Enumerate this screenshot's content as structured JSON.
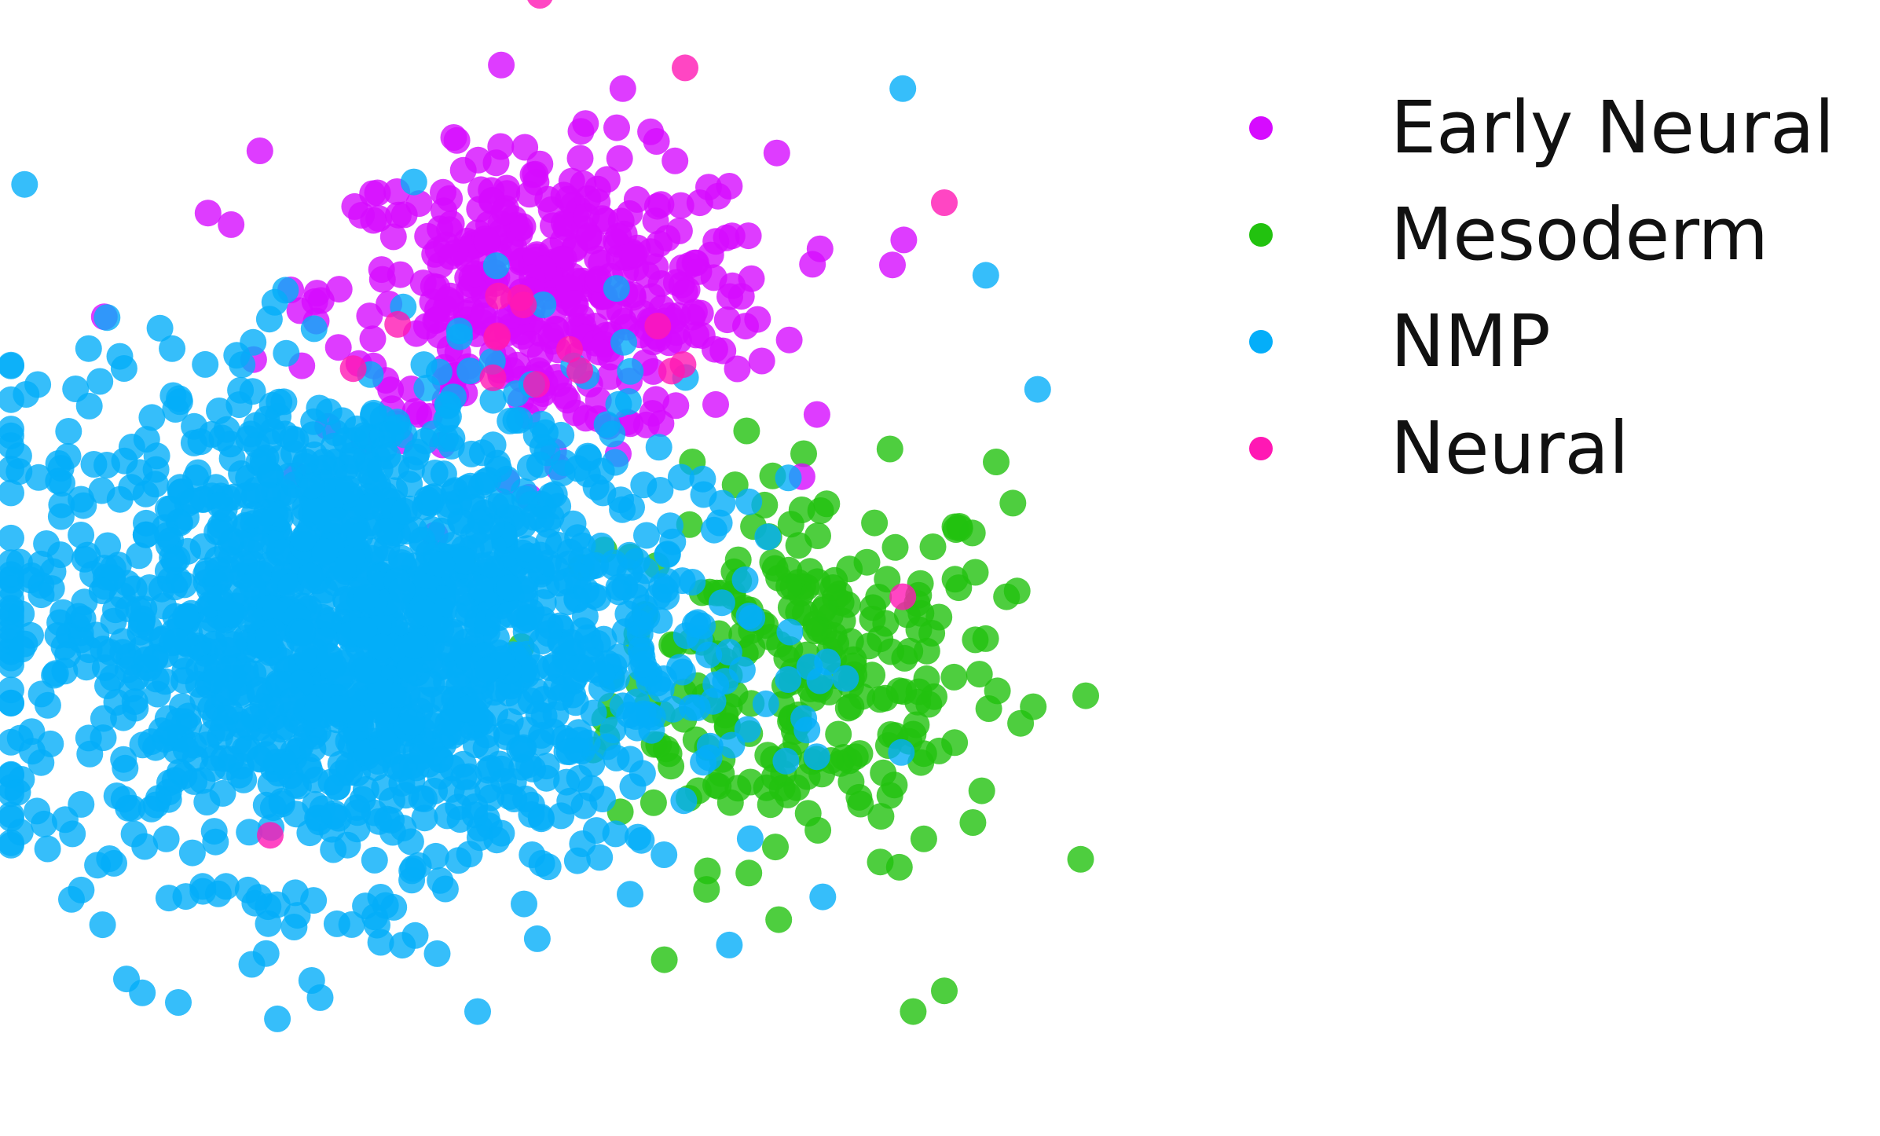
{
  "chart_data": {
    "type": "scatter",
    "title": "",
    "xlabel": "",
    "ylabel": "",
    "axes_visible": false,
    "grid": false,
    "legend_placement": "right",
    "xlim": [
      -5,
      5
    ],
    "ylim": [
      -5,
      5
    ],
    "series": [
      {
        "name": "Early Neural",
        "color": "#d60bff",
        "n_points": 420,
        "center": [
          -0.3,
          2.6
        ],
        "spread": [
          1.35,
          0.85
        ],
        "outliers": [
          [
            -3.6,
            3.4
          ],
          [
            -4.6,
            2.4
          ],
          [
            -1.2,
            4.1
          ],
          [
            3.0,
            2.9
          ],
          [
            0.4,
            4.6
          ],
          [
            -3.1,
            4.0
          ]
        ]
      },
      {
        "name": "Mesoderm",
        "color": "#22c20f",
        "n_points": 260,
        "center": [
          2.2,
          -1.0
        ],
        "spread": [
          1.2,
          1.15
        ],
        "outliers": [
          [
            3.2,
            -4.3
          ],
          [
            3.5,
            -4.1
          ],
          [
            4.1,
            -0.3
          ],
          [
            4.0,
            1.0
          ],
          [
            0.8,
            -3.8
          ]
        ]
      },
      {
        "name": "NMP",
        "color": "#04aef9",
        "n_points": 1700,
        "center": [
          -2.2,
          -0.6
        ],
        "spread": [
          2.0,
          1.5
        ],
        "outliers": [
          [
            3.1,
            4.6
          ],
          [
            3.9,
            2.8
          ],
          [
            4.4,
            1.7
          ],
          [
            -1.0,
            -4.3
          ],
          [
            -2.6,
            -4.0
          ],
          [
            -5.3,
            -1.6
          ]
        ]
      },
      {
        "name": "Neural",
        "color": "#ff18b4",
        "n_points": 12,
        "center": [
          -0.5,
          2.5
        ],
        "spread": [
          1.2,
          1.0
        ],
        "outliers": [
          [
            -0.4,
            5.5
          ],
          [
            1.0,
            4.8
          ],
          [
            3.5,
            3.5
          ],
          [
            -2.2,
            1.9
          ],
          [
            -0.8,
            2.6
          ],
          [
            3.1,
            -0.3
          ],
          [
            -3.0,
            -2.6
          ]
        ]
      }
    ]
  }
}
